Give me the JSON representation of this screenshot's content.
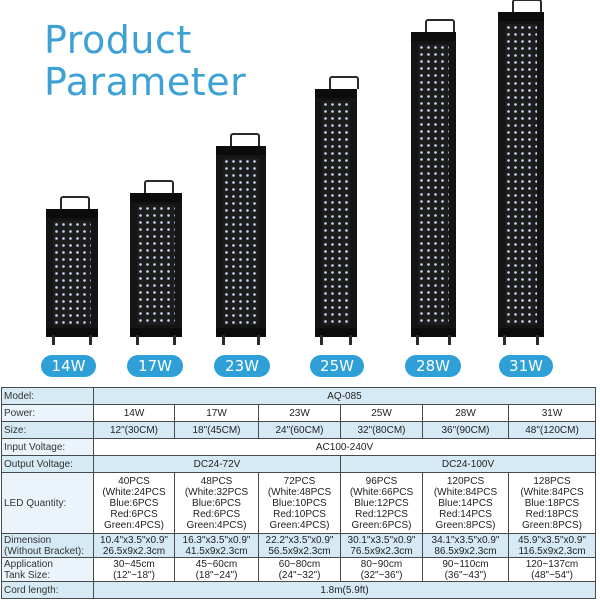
{
  "title": {
    "line1": "Product",
    "line2": "Parameter"
  },
  "badges": [
    "14W",
    "17W",
    "23W",
    "25W",
    "28W",
    "31W"
  ],
  "table": {
    "model": {
      "label": "Model:",
      "value": "AQ-085"
    },
    "power": {
      "label": "Power:",
      "values": [
        "14W",
        "17W",
        "23W",
        "25W",
        "28W",
        "31W"
      ]
    },
    "size": {
      "label": "Size:",
      "values": [
        "12\"(30CM)",
        "18\"(45CM)",
        "24\"(60CM)",
        "32\"(80CM)",
        "36\"(90CM)",
        "48\"(120CM)"
      ]
    },
    "input_voltage": {
      "label": "Input Voltage:",
      "value": "AC100-240V"
    },
    "output_voltage": {
      "label": "Output Voltage:",
      "group1": "DC24-72V",
      "group2": "DC24-100V"
    },
    "led_quantity": {
      "label": "LED Quantity:",
      "values": [
        [
          "40PCS",
          "(White:24PCS",
          "Blue:6PCS",
          "Red:6PCS",
          "Green:4PCS)"
        ],
        [
          "48PCS",
          "(White:32PCS",
          "Blue:6PCS",
          "Red:6PCS",
          "Green:4PCS)"
        ],
        [
          "72PCS",
          "(White:48PCS",
          "Blue:10PCS",
          "Red:10PCS",
          "Green:4PCS)"
        ],
        [
          "96PCS",
          "(White:66PCS",
          "Blue:12PCS",
          "Red:12PCS",
          "Green:6PCS)"
        ],
        [
          "120PCS",
          "(White:84PCS",
          "Blue:14PCS",
          "Red:14PCS",
          "Green:8PCS)"
        ],
        [
          "128PCS",
          "(White:84PCS",
          "Blue:18PCS",
          "Red:18PCS",
          "Green:8PCS)"
        ]
      ]
    },
    "dimension": {
      "label_line1": "Dimension",
      "label_line2": "(Without Bracket):",
      "values": [
        [
          "10.4\"x3.5\"x0.9\"",
          "26.5x9x2.3cm"
        ],
        [
          "16.3\"x3.5\"x0.9\"",
          "41.5x9x2.3cm"
        ],
        [
          "22.2\"x3.5\"x0.9\"",
          "56.5x9x2.3cm"
        ],
        [
          "30.1\"x3.5\"x0.9\"",
          "76.5x9x2.3cm"
        ],
        [
          "34.1\"x3.5\"x0.9\"",
          "86.5x9x2.3cm"
        ],
        [
          "45.9\"x3.5\"x0.9\"",
          "116.5x9x2.3cm"
        ]
      ]
    },
    "tank_size": {
      "label_line1": "Application",
      "label_line2": "Tank Size:",
      "values": [
        [
          "30~45cm",
          "(12\"~18\")"
        ],
        [
          "45~60cm",
          "(18\"~24\")"
        ],
        [
          "60~80cm",
          "(24\"~32\")"
        ],
        [
          "80~90cm",
          "(32\"~36\")"
        ],
        [
          "90~110cm",
          "(36\"~43\")"
        ],
        [
          "120~137cm",
          "(48\"~54\")"
        ]
      ]
    },
    "cord_length": {
      "label": "Cord length:",
      "value": "1.8m(5.9ft)"
    }
  },
  "colors": {
    "title": "#3ea1d6",
    "badge": "#2e9fd7",
    "row_alt": "#d6eaf5"
  }
}
